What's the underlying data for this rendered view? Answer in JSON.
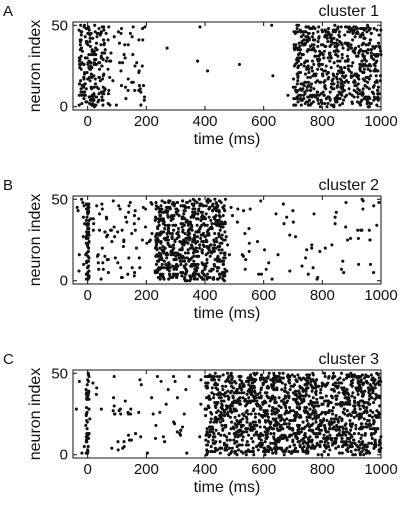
{
  "chart_data": [
    {
      "type": "scatter",
      "panel_letter": "A",
      "title": "cluster 1",
      "xlabel": "time (ms)",
      "ylabel": "neuron index",
      "xlim": [
        -50,
        1000
      ],
      "ylim": [
        -2,
        52
      ],
      "xticks": [
        0,
        200,
        400,
        600,
        800,
        1000
      ],
      "yticks": [
        0,
        50
      ],
      "grid": false,
      "color": "#111111",
      "spike_pattern": [
        {
          "desc": "onset transient",
          "t_range": [
            -30,
            60
          ],
          "n_range": [
            0,
            50
          ],
          "count": 190
        },
        {
          "desc": "transient tail",
          "t_range": [
            60,
            200
          ],
          "n_range": [
            0,
            50
          ],
          "count": 55
        },
        {
          "desc": "sparse background",
          "t_range": [
            150,
            700
          ],
          "n_range": [
            0,
            50
          ],
          "count": 10
        },
        {
          "desc": "late sustained activity",
          "t_range": [
            700,
            1000
          ],
          "n_range": [
            0,
            50
          ],
          "count": 620
        }
      ]
    },
    {
      "type": "scatter",
      "panel_letter": "B",
      "title": "cluster 2",
      "xlabel": "time (ms)",
      "ylabel": "neuron index",
      "xlim": [
        -50,
        1000
      ],
      "ylim": [
        -2,
        52
      ],
      "xticks": [
        0,
        200,
        400,
        600,
        800,
        1000
      ],
      "yticks": [
        0,
        50
      ],
      "grid": false,
      "color": "#111111",
      "spike_pattern": [
        {
          "desc": "onset column",
          "t_range": [
            -5,
            5
          ],
          "n_range": [
            0,
            50
          ],
          "count": 60
        },
        {
          "desc": "early scatter",
          "t_range": [
            -40,
            220
          ],
          "n_range": [
            0,
            50
          ],
          "count": 90
        },
        {
          "desc": "middle sustained activity",
          "t_range": [
            230,
            470
          ],
          "n_range": [
            0,
            50
          ],
          "count": 640
        },
        {
          "desc": "late sparse activity",
          "t_range": [
            470,
            1000
          ],
          "n_range": [
            0,
            50
          ],
          "count": 75
        }
      ]
    },
    {
      "type": "scatter",
      "panel_letter": "C",
      "title": "cluster 3",
      "xlabel": "time (ms)",
      "ylabel": "neuron index",
      "xlim": [
        -50,
        1000
      ],
      "ylim": [
        -2,
        52
      ],
      "xticks": [
        0,
        200,
        400,
        600,
        800,
        1000
      ],
      "yticks": [
        0,
        50
      ],
      "grid": false,
      "color": "#111111",
      "spike_pattern": [
        {
          "desc": "onset column",
          "t_range": [
            -5,
            5
          ],
          "n_range": [
            0,
            50
          ],
          "count": 45
        },
        {
          "desc": "early sparse activity",
          "t_range": [
            -40,
            400
          ],
          "n_range": [
            0,
            50
          ],
          "count": 70
        },
        {
          "desc": "late dense sustained activity",
          "t_range": [
            400,
            1000
          ],
          "n_range": [
            0,
            50
          ],
          "count": 1500
        }
      ]
    }
  ]
}
